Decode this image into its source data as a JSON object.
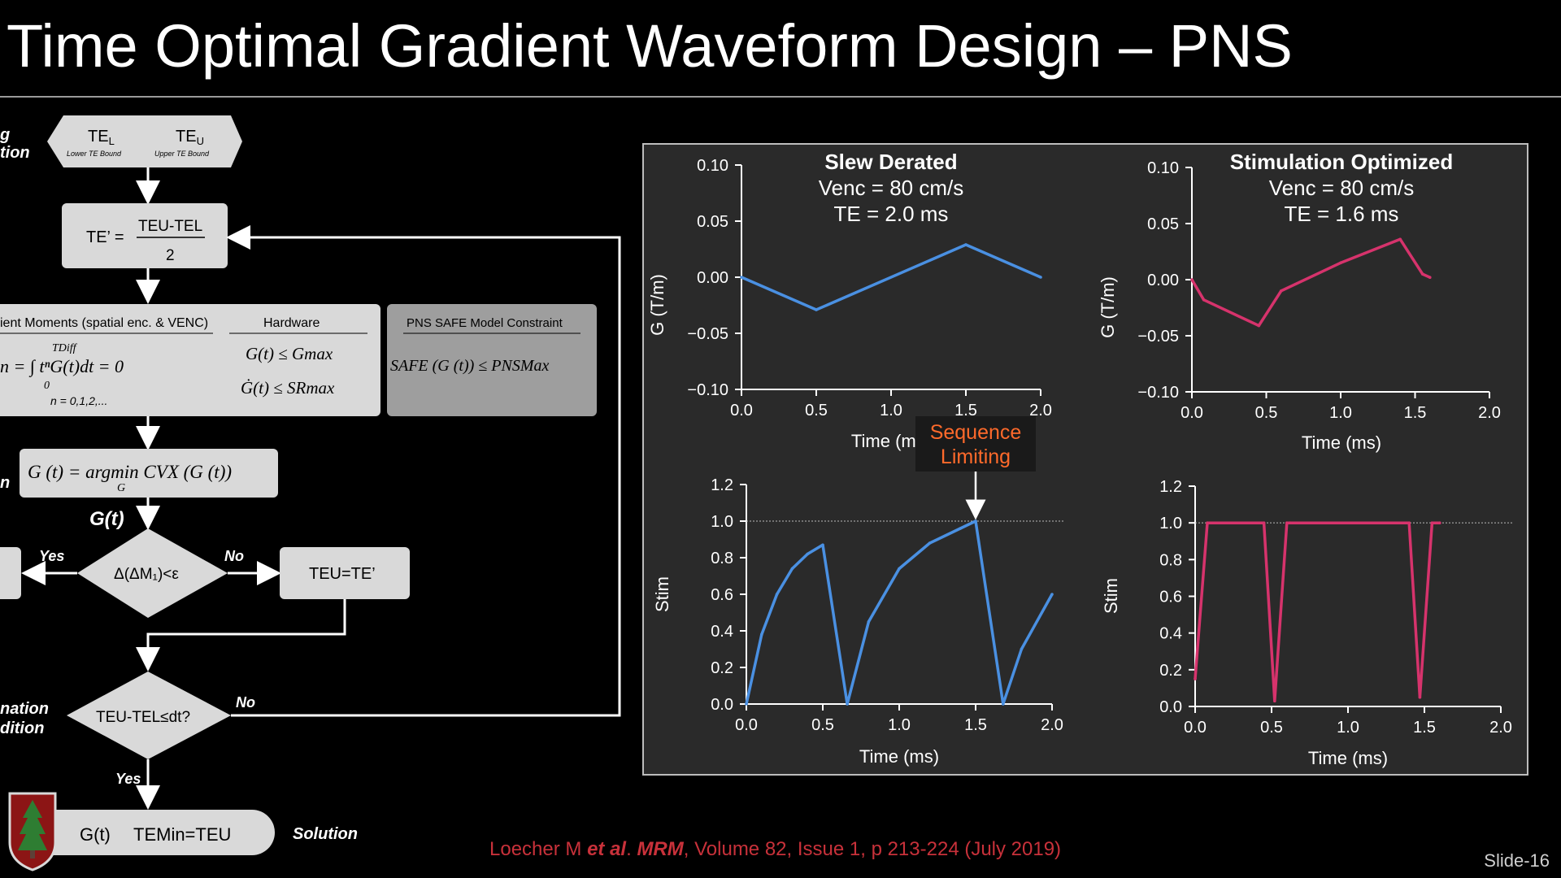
{
  "slide": {
    "title": "Time Optimal Gradient Waveform Design – PNS",
    "number": "Slide-16",
    "citation": {
      "authors": "Loecher M ",
      "etal": "et al",
      "dot": ". ",
      "journal": "MRM",
      "rest": ", Volume 82, Issue 1, p 213-224 (July 2019)"
    },
    "colors": {
      "blue": "#4a90e2",
      "pink": "#d6336c",
      "accent_red": "#c8313a",
      "orange": "#ff6a2b"
    }
  },
  "flowchart": {
    "side_labels": [
      "g",
      "tion",
      "n",
      "nation",
      "dition"
    ],
    "start": {
      "te_l": "TE",
      "te_l_sub": "L",
      "te_l_desc": "Lower TE Bound",
      "te_u": "TE",
      "te_u_sub": "U",
      "te_u_desc": "Upper TE Bound"
    },
    "midpoint": {
      "lhs": "TE’ =",
      "numerator": "TEU-TEL",
      "denominator": "2"
    },
    "constraints": {
      "moments_header": "ient Moments (spatial enc. & VENC)",
      "moments_eq": "n = ∫ tⁿG(t)dt = 0",
      "moments_limits_top": "TDiff",
      "moments_limits_bottom": "0",
      "moments_n": "n = 0,1,2,...",
      "hardware_header": "Hardware",
      "hardware_eq1": "G(t) ≤ Gmax",
      "hardware_eq2": "Ġ(t) ≤ SRmax",
      "pns_header": "PNS SAFE Model Constraint",
      "pns_eq": "SAFE (G (t)) ≤ PNSMax"
    },
    "optimize": {
      "eq": "G (t) = argmin CVX (G (t))",
      "sub": "G"
    },
    "gt_label": "G(t)",
    "decision1": {
      "text": "Δ(ΔM₁)<ε",
      "yes": "Yes",
      "no": "No"
    },
    "update": {
      "text": "TEU=TE’"
    },
    "decision2": {
      "text": "TEU-TEL≤dt?",
      "yes": "Yes",
      "no": "No"
    },
    "solution": {
      "gt": "G(t)",
      "te": "TEMin=TEU",
      "label": "Solution"
    }
  },
  "callout": {
    "line1": "Sequence",
    "line2": "Limiting"
  },
  "chart_data": [
    {
      "type": "line",
      "title": "Slew Derated",
      "subtitle1": "Venc = 80 cm/s",
      "subtitle2": "TE = 2.0 ms",
      "xlabel": "Time (ms)",
      "ylabel": "G (T/m)",
      "xlim": [
        0,
        2.0
      ],
      "ylim": [
        -0.1,
        0.1
      ],
      "xticks": [
        "0.0",
        "0.5",
        "1.0",
        "1.5",
        "2.0"
      ],
      "yticks": [
        "0.10",
        "0.05",
        "0.00",
        "−0.05",
        "−0.10"
      ],
      "color": "#4a90e2",
      "x": [
        0.0,
        0.5,
        1.5,
        2.0
      ],
      "y": [
        0.0,
        -0.029,
        0.029,
        0.0
      ]
    },
    {
      "type": "line",
      "title": "Stimulation Optimized",
      "subtitle1": "Venc = 80 cm/s",
      "subtitle2": "TE = 1.6 ms",
      "xlabel": "Time (ms)",
      "ylabel": "G (T/m)",
      "xlim": [
        0,
        2.0
      ],
      "ylim": [
        -0.1,
        0.1
      ],
      "xticks": [
        "0.0",
        "0.5",
        "1.0",
        "1.5",
        "2.0"
      ],
      "yticks": [
        "0.10",
        "0.05",
        "0.00",
        "−0.05",
        "−0.10"
      ],
      "color": "#d6336c",
      "x": [
        0.0,
        0.08,
        0.45,
        0.6,
        1.0,
        1.4,
        1.55,
        1.6
      ],
      "y": [
        0.0,
        -0.018,
        -0.041,
        -0.01,
        0.015,
        0.036,
        0.005,
        0.002
      ]
    },
    {
      "type": "line",
      "title": "",
      "xlabel": "Time (ms)",
      "ylabel": "Stim",
      "xlim": [
        0,
        2.0
      ],
      "ylim": [
        0,
        1.2
      ],
      "xticks": [
        "0.0",
        "0.5",
        "1.0",
        "1.5",
        "2.0"
      ],
      "yticks": [
        "1.2",
        "1.0",
        "0.8",
        "0.6",
        "0.4",
        "0.2",
        "0.0"
      ],
      "limit_line": 1.0,
      "color": "#4a90e2",
      "x": [
        0.0,
        0.1,
        0.2,
        0.3,
        0.4,
        0.5,
        0.66,
        0.8,
        1.0,
        1.2,
        1.4,
        1.5,
        1.68,
        1.8,
        2.0
      ],
      "y": [
        0.0,
        0.38,
        0.6,
        0.74,
        0.82,
        0.87,
        0.0,
        0.45,
        0.74,
        0.88,
        0.96,
        1.0,
        0.0,
        0.3,
        0.6
      ]
    },
    {
      "type": "line",
      "title": "",
      "xlabel": "Time (ms)",
      "ylabel": "Stim",
      "xlim": [
        0,
        2.0
      ],
      "ylim": [
        0,
        1.2
      ],
      "xticks": [
        "0.0",
        "0.5",
        "1.0",
        "1.5",
        "2.0"
      ],
      "yticks": [
        "1.2",
        "1.0",
        "0.8",
        "0.6",
        "0.4",
        "0.2",
        "0.0"
      ],
      "limit_line": 1.0,
      "color": "#d6336c",
      "x": [
        0.0,
        0.08,
        0.45,
        0.52,
        0.6,
        0.62,
        1.4,
        1.47,
        1.55,
        1.6
      ],
      "y": [
        0.15,
        1.0,
        1.0,
        0.03,
        1.0,
        1.0,
        1.0,
        0.05,
        1.0,
        1.0
      ]
    }
  ]
}
